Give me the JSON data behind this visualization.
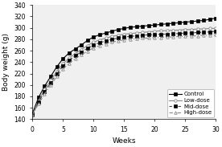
{
  "weeks": [
    0,
    1,
    2,
    3,
    4,
    5,
    6,
    7,
    8,
    9,
    10,
    11,
    12,
    13,
    14,
    15,
    16,
    17,
    18,
    19,
    20,
    21,
    22,
    23,
    24,
    25,
    26,
    27,
    28,
    29,
    30
  ],
  "control": [
    150,
    178,
    198,
    215,
    232,
    246,
    256,
    263,
    270,
    278,
    284,
    288,
    291,
    294,
    297,
    299,
    301,
    302,
    303,
    304,
    305,
    306,
    307,
    308,
    309,
    310,
    311,
    312,
    313,
    315,
    317
  ],
  "low_dose": [
    148,
    172,
    192,
    208,
    224,
    237,
    247,
    255,
    262,
    269,
    275,
    279,
    282,
    285,
    287,
    289,
    290,
    291,
    292,
    293,
    294,
    295,
    295,
    296,
    296,
    297,
    297,
    298,
    298,
    299,
    299
  ],
  "mid_dose": [
    148,
    170,
    188,
    204,
    220,
    233,
    243,
    251,
    258,
    264,
    270,
    274,
    277,
    280,
    282,
    284,
    285,
    286,
    287,
    288,
    288,
    289,
    289,
    290,
    290,
    291,
    291,
    292,
    292,
    293,
    294
  ],
  "high_dose": [
    147,
    167,
    184,
    200,
    215,
    228,
    238,
    246,
    253,
    259,
    265,
    269,
    272,
    275,
    277,
    279,
    280,
    281,
    282,
    282,
    283,
    283,
    284,
    284,
    285,
    285,
    286,
    286,
    287,
    287,
    288
  ],
  "ylim": [
    140,
    340
  ],
  "xlim": [
    0,
    30
  ],
  "yticks": [
    140,
    160,
    180,
    200,
    220,
    240,
    260,
    280,
    300,
    320,
    340
  ],
  "xticks": [
    0,
    5,
    10,
    15,
    20,
    25,
    30
  ],
  "ylabel": "Body weight (g)",
  "xlabel": "Weeks",
  "legend_labels": [
    "Control",
    "Low-dose",
    "Mid-dose",
    "High-dose"
  ]
}
